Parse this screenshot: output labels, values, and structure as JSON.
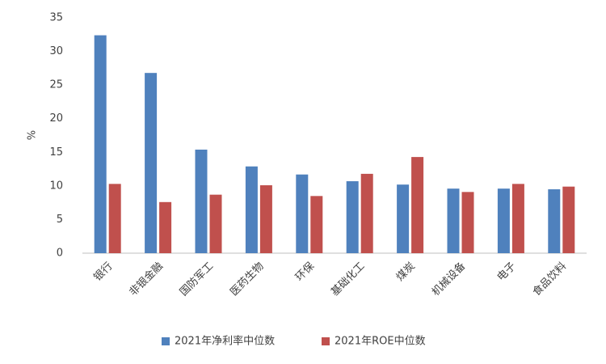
{
  "chart_data": {
    "type": "bar",
    "y_label": "%",
    "categories": [
      "银行",
      "非银金融",
      "国防军工",
      "医药生物",
      "环保",
      "基础化工",
      "煤炭",
      "机械设备",
      "电子",
      "食品饮料"
    ],
    "series": [
      {
        "name": "2021年净利率中位数",
        "color": "#4f81bd",
        "values": [
          32.4,
          26.8,
          15.4,
          12.9,
          11.7,
          10.7,
          10.2,
          9.6,
          9.6,
          9.5
        ]
      },
      {
        "name": "2021年ROE中位数",
        "color": "#c0504d",
        "values": [
          10.3,
          7.6,
          8.7,
          10.1,
          8.5,
          11.8,
          14.3,
          9.1,
          10.3,
          9.9
        ]
      }
    ],
    "ylim": [
      0,
      35
    ],
    "yticks": [
      0,
      5,
      10,
      15,
      20,
      25,
      30,
      35
    ],
    "legend": "bottom"
  }
}
